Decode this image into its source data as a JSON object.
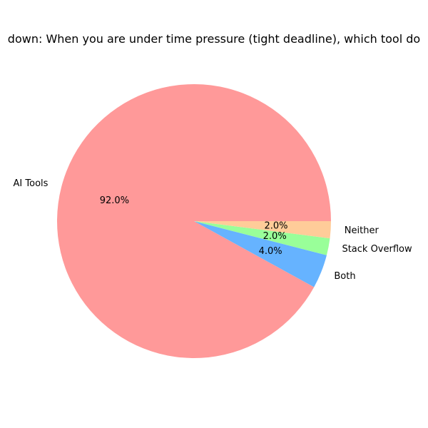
{
  "chart_data": {
    "type": "pie",
    "title": "down: When you are under time pressure (tight deadline), which tool do",
    "slices": [
      {
        "label": "AI Tools",
        "value": 92.0,
        "pct_label": "92.0%",
        "color": "#ff9999"
      },
      {
        "label": "Both",
        "value": 4.0,
        "pct_label": "4.0%",
        "color": "#66b3ff"
      },
      {
        "label": "Stack Overflow",
        "value": 2.0,
        "pct_label": "2.0%",
        "color": "#99ff99"
      },
      {
        "label": "Neither",
        "value": 2.0,
        "pct_label": "2.0%",
        "color": "#ffcc99"
      }
    ],
    "start_angle_deg": 0,
    "direction": "counterclockwise",
    "legend": "none"
  }
}
